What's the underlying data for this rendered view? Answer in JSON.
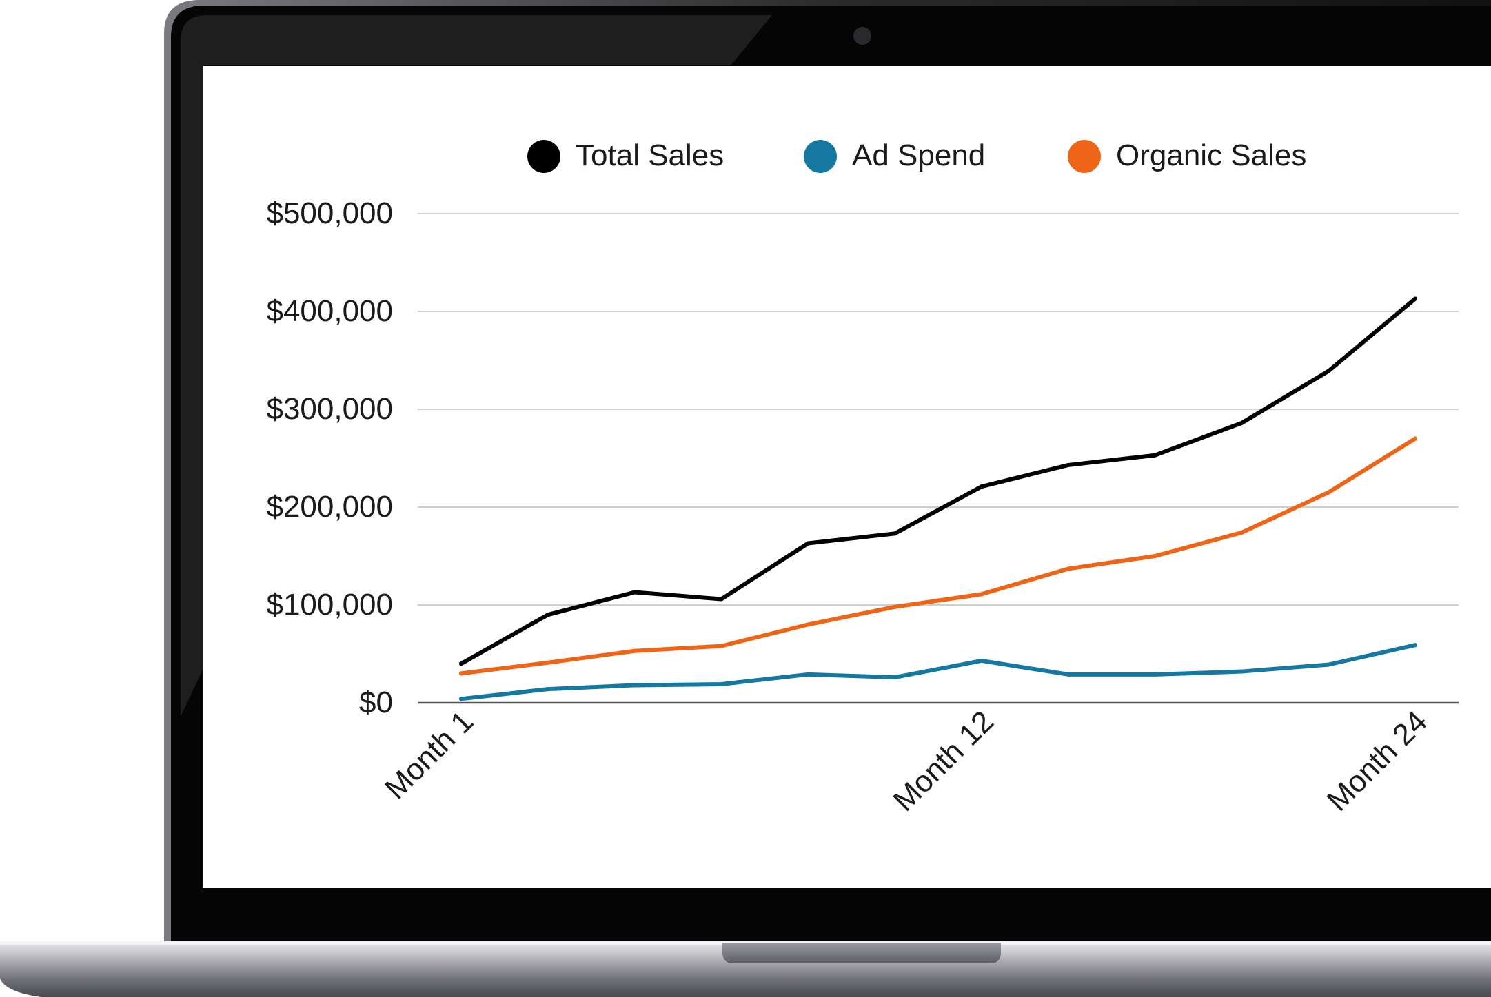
{
  "colors": {
    "total_sales": "#000000",
    "ad_spend": "#1478a0",
    "organic_sales": "#ee6518",
    "gridline": "#cfcfcf",
    "axis": "#555555",
    "text": "#1a1a1a"
  },
  "chart_data": {
    "type": "line",
    "title": "",
    "xlabel": "",
    "ylabel": "",
    "ylim": [
      0,
      500000
    ],
    "grid": true,
    "legend_position": "top-center",
    "legend": [
      "Total Sales",
      "Ad Spend",
      "Organic Sales"
    ],
    "x_tick_labels": [
      {
        "label": "Month 1",
        "point": 1
      },
      {
        "label": "Month 12",
        "point": 7
      },
      {
        "label": "Month 24",
        "point": 12
      }
    ],
    "y_tick_labels": [
      {
        "label": "$500,000",
        "value": 500000
      },
      {
        "label": "$400,000",
        "value": 400000
      },
      {
        "label": "$300,000",
        "value": 300000
      },
      {
        "label": "$200,000",
        "value": 200000
      },
      {
        "label": "$100,000",
        "value": 100000
      },
      {
        "label": "$0",
        "value": 0
      }
    ],
    "x": [
      1,
      2,
      3,
      4,
      5,
      6,
      7,
      8,
      9,
      10,
      11,
      12
    ],
    "series": [
      {
        "key": "total_sales",
        "name": "Total Sales",
        "values": [
          40000,
          90000,
          113000,
          106000,
          163000,
          173000,
          221000,
          243000,
          253000,
          286000,
          339000,
          413000
        ]
      },
      {
        "key": "ad_spend",
        "name": "Ad Spend",
        "values": [
          4000,
          14000,
          18000,
          19000,
          29000,
          26000,
          43000,
          29000,
          29000,
          32000,
          39000,
          59000
        ]
      },
      {
        "key": "organic_sales",
        "name": "Organic Sales",
        "values": [
          30000,
          41000,
          53000,
          58000,
          80000,
          98000,
          111000,
          137000,
          150000,
          174000,
          215000,
          270000
        ]
      }
    ]
  }
}
